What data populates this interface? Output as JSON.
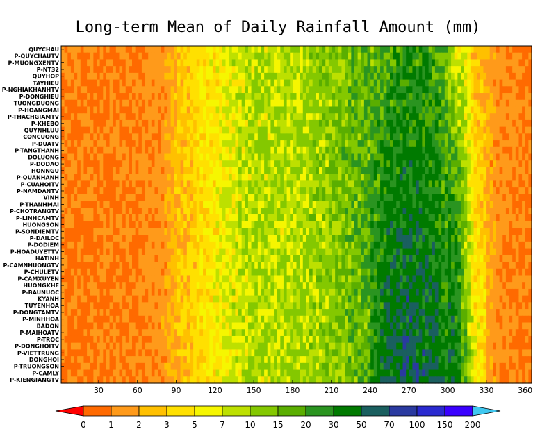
{
  "chart_data": {
    "type": "heatmap",
    "title": "Long-term Mean of Daily Rainfall Amount (mm)",
    "xlabel": "",
    "ylabel": "",
    "xlim": [
      1,
      365
    ],
    "x_ticks": [
      "30",
      "60",
      "90",
      "120",
      "150",
      "180",
      "210",
      "240",
      "270",
      "300",
      "330",
      "360"
    ],
    "x_tick_values": [
      30,
      60,
      90,
      120,
      150,
      180,
      210,
      240,
      270,
      300,
      330,
      360
    ],
    "y_categories": [
      "QUYCHAU",
      "P-QUYCHAUTV",
      "P-MUONGXENTV",
      "P-NT32",
      "QUYHOP",
      "TAYHIEU",
      "P-NGHIAKHANHTV",
      "P-DONGHIEU",
      "TUONGDUONG",
      "P-HOANGMAI",
      "P-THACHGIAMTV",
      "P-KHEBO",
      "QUYNHLUU",
      "CONCUONG",
      "P-DUATV",
      "P-TANGTHANH",
      "DOLUONG",
      "P-DODAO",
      "HONNGU",
      "P-QUANHANH",
      "P-CUAHOITV",
      "P-NAMDANTV",
      "VINH",
      "P-THANHMAI",
      "P-CHOTRANGTV",
      "P-LINHCAMTV",
      "HUONGSON",
      "P-SONDIEMTV",
      "P-DAILOC",
      "P-DODIEM",
      "P-HOADUYETTV",
      "HATINH",
      "P-CAMNHUONGTV",
      "P-CHULETV",
      "P-CAMXUYEN",
      "HUONGKHE",
      "P-BAUNUOC",
      "KYANH",
      "TUYENHOA",
      "P-DONGTAMTV",
      "P-MINHHOA",
      "BADON",
      "P-MAIHOATV",
      "P-TROC",
      "P-DONGHOITV",
      "P-VIETTRUNG",
      "DONGHOI",
      "P-TRUONGSON",
      "P-CAMLY",
      "P-KIENGIANGTV"
    ],
    "colorbar": {
      "labels": [
        "0",
        "1",
        "2",
        "3",
        "5",
        "7",
        "10",
        "15",
        "20",
        "30",
        "50",
        "70",
        "100",
        "150",
        "200"
      ],
      "colors": [
        "#ff0000",
        "#ff6a00",
        "#ff9a1a",
        "#ffc000",
        "#ffe000",
        "#f6f600",
        "#bde000",
        "#84c800",
        "#5aae00",
        "#2a9420",
        "#007a00",
        "#1a5f5f",
        "#2a3aa0",
        "#2a2ad0",
        "#3a00ff",
        "#3a50f0",
        "#4a90f0",
        "#40c8f0"
      ]
    },
    "profile": {
      "description_days": [
        1,
        30,
        60,
        80,
        100,
        120,
        150,
        180,
        210,
        240,
        255,
        270,
        290,
        300,
        320,
        340,
        365
      ],
      "typical_mm": [
        0.9,
        0.9,
        1.0,
        1.4,
        3,
        5,
        9,
        9,
        12,
        18,
        30,
        35,
        30,
        18,
        3,
        1.2,
        0.9
      ]
    }
  }
}
